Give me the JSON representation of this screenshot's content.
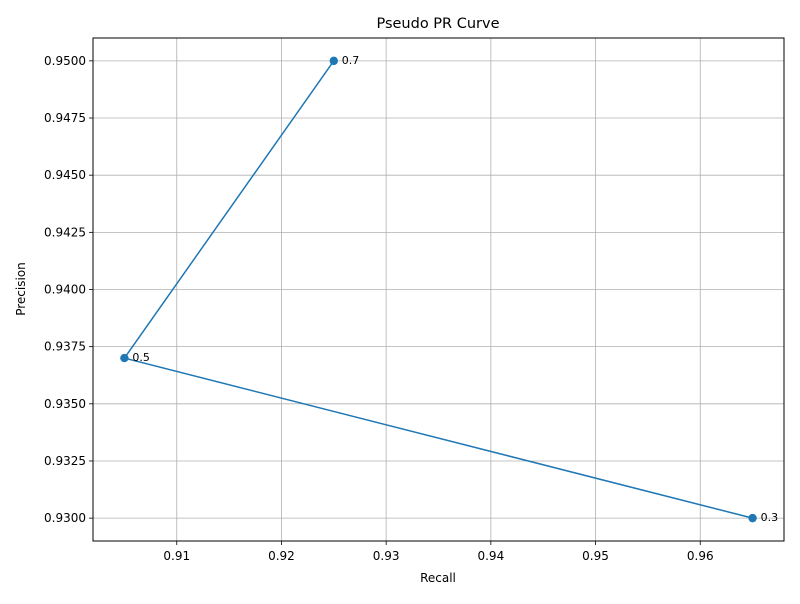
{
  "chart_data": {
    "type": "line",
    "title": "Pseudo PR Curve",
    "xlabel": "Recall",
    "ylabel": "Precision",
    "xlim": [
      0.902,
      0.968
    ],
    "ylim": [
      0.929,
      0.951
    ],
    "xticks": [
      0.91,
      0.92,
      0.93,
      0.94,
      0.95,
      0.96
    ],
    "xtick_labels": [
      "0.91",
      "0.92",
      "0.93",
      "0.94",
      "0.95",
      "0.96"
    ],
    "yticks": [
      0.93,
      0.9325,
      0.935,
      0.9375,
      0.94,
      0.9425,
      0.945,
      0.9475,
      0.95
    ],
    "ytick_labels": [
      "0.9300",
      "0.9325",
      "0.9350",
      "0.9375",
      "0.9400",
      "0.9425",
      "0.9450",
      "0.9475",
      "0.9500"
    ],
    "grid": true,
    "series": [
      {
        "x": [
          0.925,
          0.905,
          0.965
        ],
        "y": [
          0.95,
          0.937,
          0.93
        ],
        "point_labels": [
          "0.7",
          "0.5",
          "0.3"
        ],
        "color": "#1f77b4",
        "marker": "circle"
      }
    ]
  }
}
